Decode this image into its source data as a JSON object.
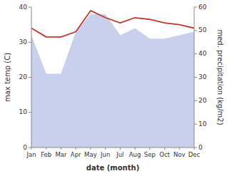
{
  "chart_data": {
    "type": "line",
    "xlabel": "date (month)",
    "ylabel": "max temp (C)",
    "y2label": "med. precipitation (kg/m2)",
    "categories": [
      "Jan",
      "Feb",
      "Mar",
      "Apr",
      "May",
      "Jun",
      "Jul",
      "Aug",
      "Sep",
      "Oct",
      "Nov",
      "Dec"
    ],
    "series": [
      {
        "type": "area",
        "color": "#c8d0ee",
        "values": [
          32.0,
          21.0,
          21.0,
          33.0,
          38.0,
          38.0,
          32.0,
          34.0,
          31.0,
          31.0,
          32.0,
          33.0
        ]
      },
      {
        "type": "line",
        "color": "#c0392b",
        "values": [
          34.0,
          31.5,
          31.5,
          33.0,
          39.0,
          37.0,
          35.5,
          37.0,
          36.5,
          35.5,
          35.0,
          34.0
        ]
      }
    ],
    "ylim": [
      0,
      40
    ],
    "yticks": [
      0,
      10,
      20,
      30,
      40
    ],
    "y2lim": [
      0,
      60
    ],
    "y2ticks": [
      0,
      10,
      20,
      30,
      40,
      50,
      60
    ],
    "grid": false
  }
}
